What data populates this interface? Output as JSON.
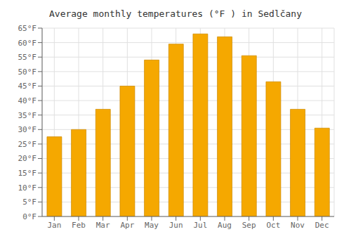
{
  "chart_data": {
    "type": "bar",
    "title": "Average monthly temperatures (°F ) in Sedlčany",
    "categories": [
      "Jan",
      "Feb",
      "Mar",
      "Apr",
      "May",
      "Jun",
      "Jul",
      "Aug",
      "Sep",
      "Oct",
      "Nov",
      "Dec"
    ],
    "values": [
      27.5,
      30.0,
      37.0,
      45.0,
      54.0,
      59.5,
      63.0,
      62.0,
      55.5,
      46.5,
      37.0,
      30.5
    ],
    "color": "#F5A800",
    "ylim": [
      0,
      65
    ],
    "yticks": [
      {
        "value": 0,
        "label": "0°F"
      },
      {
        "value": 5,
        "label": "5°F"
      },
      {
        "value": 10,
        "label": "10°F"
      },
      {
        "value": 15,
        "label": "15°F"
      },
      {
        "value": 20,
        "label": "20°F"
      },
      {
        "value": 25,
        "label": "25°F"
      },
      {
        "value": 30,
        "label": "30°F"
      },
      {
        "value": 35,
        "label": "35°F"
      },
      {
        "value": 40,
        "label": "40°F"
      },
      {
        "value": 45,
        "label": "45°F"
      },
      {
        "value": 50,
        "label": "50°F"
      },
      {
        "value": 55,
        "label": "55°F"
      },
      {
        "value": 60,
        "label": "60°F"
      },
      {
        "value": 65,
        "label": "65°F"
      }
    ],
    "grid": true
  }
}
